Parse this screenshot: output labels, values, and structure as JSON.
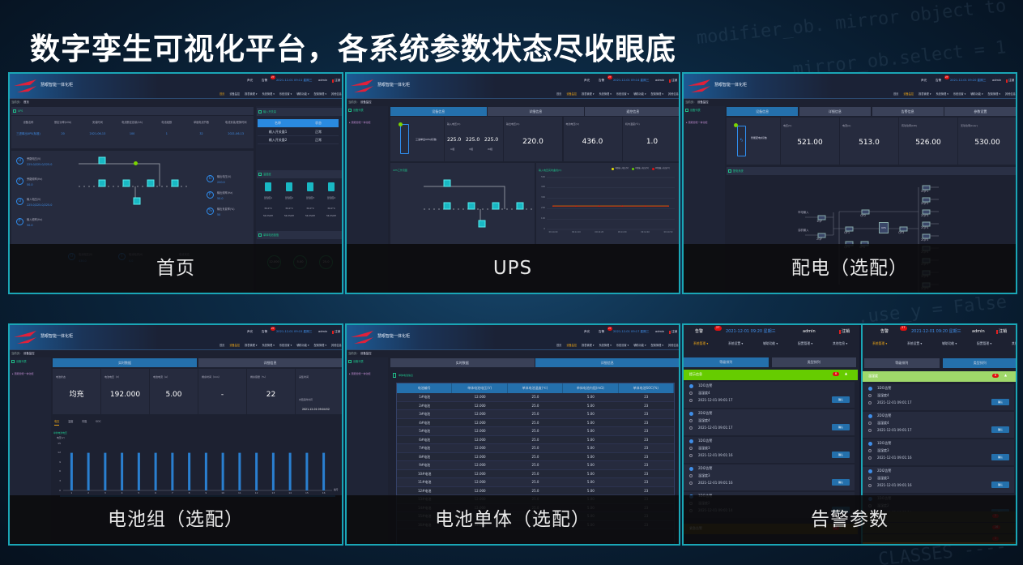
{
  "page_title": "数字孪生可视化平台，各系统参数状态尽收眼底",
  "colors": {
    "accent_teal": "#1aa6b6",
    "tab_blue": "#2470ac",
    "alarm_green": "#66cc00",
    "badge_red": "#e01010",
    "nav_active": "#e8a317"
  },
  "common": {
    "app_title": "慧眼智能一体化柜",
    "logo_text": "KELONG",
    "sound": "声光",
    "alarm": "告警",
    "user": "admin",
    "logout": "注销",
    "nav": [
      "首页",
      "设备监控",
      "报表管理 ▾",
      "系统管理 ▾",
      "系统设置 ▾",
      "辅助功能 ▾",
      "配置管理 ▾",
      "其他信息 ▾"
    ],
    "breadcrumb_label": "当前页：",
    "tree_title": "设备列表",
    "tree_item": "▸ 慧眼智能一体化柜"
  },
  "panels": [
    {
      "caption": "首页",
      "datetime": "2021-12-01 09:11 星期三",
      "alarm_count": "27",
      "breadcrumb": "首页",
      "active_nav": 0,
      "ups_section": "UPS",
      "table_headers": [
        "设备名称",
        "额定功率(kVA)",
        "安装时间",
        "电池额定容量(Ah)",
        "电池组数",
        "单组电池节数",
        "电池安装/更换时间"
      ],
      "table_values": [
        "三进单出UPS(标准)",
        "20",
        "2021-06-13",
        "100",
        "1",
        "32",
        "2021-06-13"
      ],
      "left_metrics": [
        {
          "icon": "U",
          "label": "旁路电压(V)",
          "value": "225.0/225.0/225.0"
        },
        {
          "icon": "F",
          "label": "旁路频率(Hz)",
          "value": "50.0"
        },
        {
          "icon": "U",
          "label": "输入电压(V)",
          "value": "225.0/225.0/225.0"
        },
        {
          "icon": "F",
          "label": "输入频率(Hz)",
          "value": "50.0"
        }
      ],
      "right_metrics": [
        {
          "icon": "U",
          "label": "输出电压(V)",
          "value": "220.0"
        },
        {
          "icon": "F",
          "label": "输出频率(Hz)",
          "value": "50.0"
        },
        {
          "icon": "%",
          "label": "输出负载率(%)",
          "value": "50"
        }
      ],
      "bottom_metrics": [
        {
          "icon": "U",
          "label": "电池电压(V)",
          "value": "436.0"
        },
        {
          "icon": "I",
          "label": "电池电流(A)",
          "value": "0.0"
        },
        {
          "icon": "",
          "label": "电池状态",
          "value": ""
        }
      ],
      "switch_section": "输入开关量",
      "switch_headers": [
        "名称",
        "状态"
      ],
      "switch_rows": [
        [
          "输入开关量1",
          "正常"
        ],
        [
          "输入开关量2",
          "正常"
        ]
      ],
      "th_section": "温湿度",
      "th_items": [
        {
          "name": "温湿度1",
          "temp": "30.0°C",
          "hum": "56.0%RH"
        },
        {
          "name": "温湿度2",
          "temp": "30.0°C",
          "hum": "56.0%RH"
        },
        {
          "name": "温湿度3",
          "temp": "30.0°C",
          "hum": "56.0%RH"
        },
        {
          "name": "温湿度4",
          "temp": "30.0°C",
          "hum": "56.0%RH"
        }
      ],
      "cell_section": "单体电池极值",
      "cell_values": [
        "12.000",
        "5.00",
        "25.0"
      ]
    },
    {
      "caption": "UPS",
      "datetime": "2021-12-01 09:14 星期三",
      "alarm_count": "27",
      "breadcrumb": "设备监控",
      "active_nav": 1,
      "tabs": [
        "设备信息",
        "详细信息",
        "遥控信息"
      ],
      "device_name": "三进单出UPS(标准)",
      "input_label": "输入电压(V)",
      "input_values": [
        "225.0",
        "225.0",
        "225.0"
      ],
      "phases": [
        "U相",
        "V相",
        "W相"
      ],
      "cards": [
        {
          "label": "输出电压(V)",
          "value": "220.0"
        },
        {
          "label": "电池电压(V)",
          "value": "436.0"
        },
        {
          "label": "机内温度(℃)",
          "value": "1.0"
        }
      ],
      "flow_title": "UPS工作流图",
      "chart_data": {
        "type": "line",
        "title": "输入电压实时曲线(V)",
        "legend_placement": "top-right",
        "x": [
          "09:14:00",
          "09:14:10",
          "09:14:20",
          "09:14:30",
          "09:14:40",
          "09:14:50"
        ],
        "series": [
          {
            "name": "U相输入电压(V)",
            "color": "#e8e000",
            "values": [
              225,
              225,
              225,
              225,
              225,
              225
            ]
          },
          {
            "name": "V相输入电压(V)",
            "color": "#66cc00",
            "values": [
              225,
              225,
              225,
              225,
              225,
              225
            ]
          },
          {
            "name": "W相输入电压(V)",
            "color": "#e01010",
            "values": [
              225,
              225,
              225,
              225,
              225,
              225
            ]
          }
        ],
        "ylim": [
          0,
          500
        ],
        "yticks": [
          0,
          100,
          200,
          300,
          400,
          500
        ],
        "grid": true
      }
    },
    {
      "caption": "配电（选配）",
      "datetime": "2021-12-01 09:20 星期三",
      "alarm_count": "27",
      "breadcrumb": "设备监控",
      "active_nav": 1,
      "tabs": [
        "设备信息",
        "详细信息",
        "告警信息",
        "参数设置"
      ],
      "device_name": "智能配电(标准)",
      "cards": [
        {
          "label": "电压(V)",
          "value": "521.00"
        },
        {
          "label": "电流(A)",
          "value": "513.0"
        },
        {
          "label": "有功功率(kW)",
          "value": "526.00"
        },
        {
          "label": "无功功率(kvar)",
          "value": "530.00"
        }
      ],
      "system_title": "配电系统",
      "inputs": [
        "市电输入",
        "油机输入"
      ],
      "breakers_in": [
        "1QF",
        "2QF"
      ],
      "breakers_mid": [
        "QF1",
        "QF2",
        "QF3",
        "QF5",
        "SPD"
      ],
      "ups_label": "UPS",
      "outputs": [
        "2QF1",
        "2QF2",
        "2QF3",
        "2QF4",
        "2QF5",
        "2QF6",
        "2QF7",
        "2QF8",
        "2QF9"
      ]
    },
    {
      "caption": "电池组（选配）",
      "datetime": "2021-12-01 09:15 星期三",
      "alarm_count": "27",
      "breadcrumb": "设备监控",
      "active_nav": 1,
      "tabs": [
        "实时数据",
        "详细信息"
      ],
      "cards": [
        {
          "label": "电池状态",
          "value": "均充"
        },
        {
          "label": "电池电压（V）",
          "value": "192.000"
        },
        {
          "label": "电池电流（A）",
          "value": "5.00"
        },
        {
          "label": "剩余时间（min）",
          "value": "-"
        },
        {
          "label": "剩余容量（%）",
          "value": "22"
        }
      ],
      "collect_label": "采集时间",
      "collect_sub": "内阻采样时间",
      "collect_time": "2021-12-01 09:04:52",
      "sub_tabs": [
        "电压",
        "温度",
        "内阻",
        "SOC"
      ],
      "chart_data": {
        "type": "bar",
        "title": "单体电池电压",
        "ylabel": "电压(V)",
        "xlabel": "编号",
        "categories": [
          "1",
          "2",
          "3",
          "4",
          "5",
          "6",
          "7",
          "8",
          "9",
          "10",
          "11",
          "12",
          "13",
          "14",
          "15",
          "16"
        ],
        "values": [
          12,
          12,
          12,
          12,
          12,
          12,
          12,
          12,
          12,
          12,
          12,
          12,
          12,
          12,
          12,
          12
        ],
        "ylim": [
          0,
          15
        ],
        "yticks": [
          0,
          3,
          6,
          9,
          12,
          15
        ],
        "color": "#2a7fd0"
      }
    },
    {
      "caption": "电池单体（选配）",
      "datetime": "2021-12-01 09:17 星期三",
      "alarm_count": "27",
      "breadcrumb": "设备监控",
      "active_nav": 1,
      "tabs": [
        "实时数据",
        "详细信息"
      ],
      "section": "单体电池信息",
      "headers": [
        "电池编号",
        "单体电池电压(V)",
        "单体电池温度(℃)",
        "单体电池内阻(mΩ)",
        "单体电池SOC(%)"
      ],
      "rows": [
        [
          "1#电池",
          "12.000",
          "25.0",
          "5.00",
          "23"
        ],
        [
          "2#电池",
          "12.000",
          "25.0",
          "5.00",
          "23"
        ],
        [
          "3#电池",
          "12.000",
          "25.0",
          "5.00",
          "23"
        ],
        [
          "4#电池",
          "12.000",
          "25.0",
          "5.00",
          "23"
        ],
        [
          "5#电池",
          "12.000",
          "25.0",
          "5.00",
          "23"
        ],
        [
          "6#电池",
          "12.000",
          "25.0",
          "5.00",
          "23"
        ],
        [
          "7#电池",
          "12.000",
          "25.0",
          "5.00",
          "23"
        ],
        [
          "8#电池",
          "12.000",
          "25.0",
          "5.00",
          "23"
        ],
        [
          "9#电池",
          "12.000",
          "25.0",
          "5.00",
          "23"
        ],
        [
          "10#电池",
          "12.000",
          "25.0",
          "5.00",
          "23"
        ],
        [
          "11#电池",
          "12.000",
          "25.0",
          "5.00",
          "23"
        ],
        [
          "12#电池",
          "12.000",
          "25.0",
          "5.00",
          "23"
        ],
        [
          "13#电池",
          "12.000",
          "25.0",
          "5.00",
          "23"
        ],
        [
          "14#电池",
          "12.000",
          "25.0",
          "5.00",
          "23"
        ],
        [
          "15#电池",
          "12.000",
          "25.0",
          "5.00",
          "23"
        ],
        [
          "16#电池",
          "12.000",
          "25.0",
          "5.00",
          "23"
        ]
      ]
    },
    {
      "caption": "告警参数",
      "datetime": "2021-12-01 09:20 星期三",
      "alarm_count": "27",
      "nav": [
        "系统管理 ▾",
        "系统设置 ▾",
        "辅助功能 ▾",
        "配置管理 ▾",
        "其他信息 ▾"
      ],
      "tabs": [
        "等级排列",
        "类型排列"
      ],
      "views": [
        {
          "active_tab": 0,
          "group": "提示信息",
          "group_count": "8",
          "group_color": "#66cc00",
          "bottom_group": "紧急告警",
          "bottom_counts": [
            "8"
          ]
        },
        {
          "active_tab": 1,
          "group": "温湿度",
          "group_count": "8",
          "group_color": "#9fd86a",
          "bottom_group": "",
          "bottom_counts": [
            "2",
            "16",
            "1"
          ]
        }
      ],
      "confirm": "确认",
      "items": [
        {
          "title": "1DI1告警",
          "device": "温湿度4",
          "time": "2021-12-01 09:01:17"
        },
        {
          "title": "2DI2告警",
          "device": "温湿度4",
          "time": "2021-12-01 09:01:17"
        },
        {
          "title": "1DI1告警",
          "device": "温湿度3",
          "time": "2021-12-01 09:01:16"
        },
        {
          "title": "2DI2告警",
          "device": "温湿度3",
          "time": "2021-12-01 09:01:16"
        },
        {
          "title": "1DI1告警",
          "device": "温湿度2",
          "time": "2021-12-01 09:01:14"
        }
      ]
    }
  ]
}
